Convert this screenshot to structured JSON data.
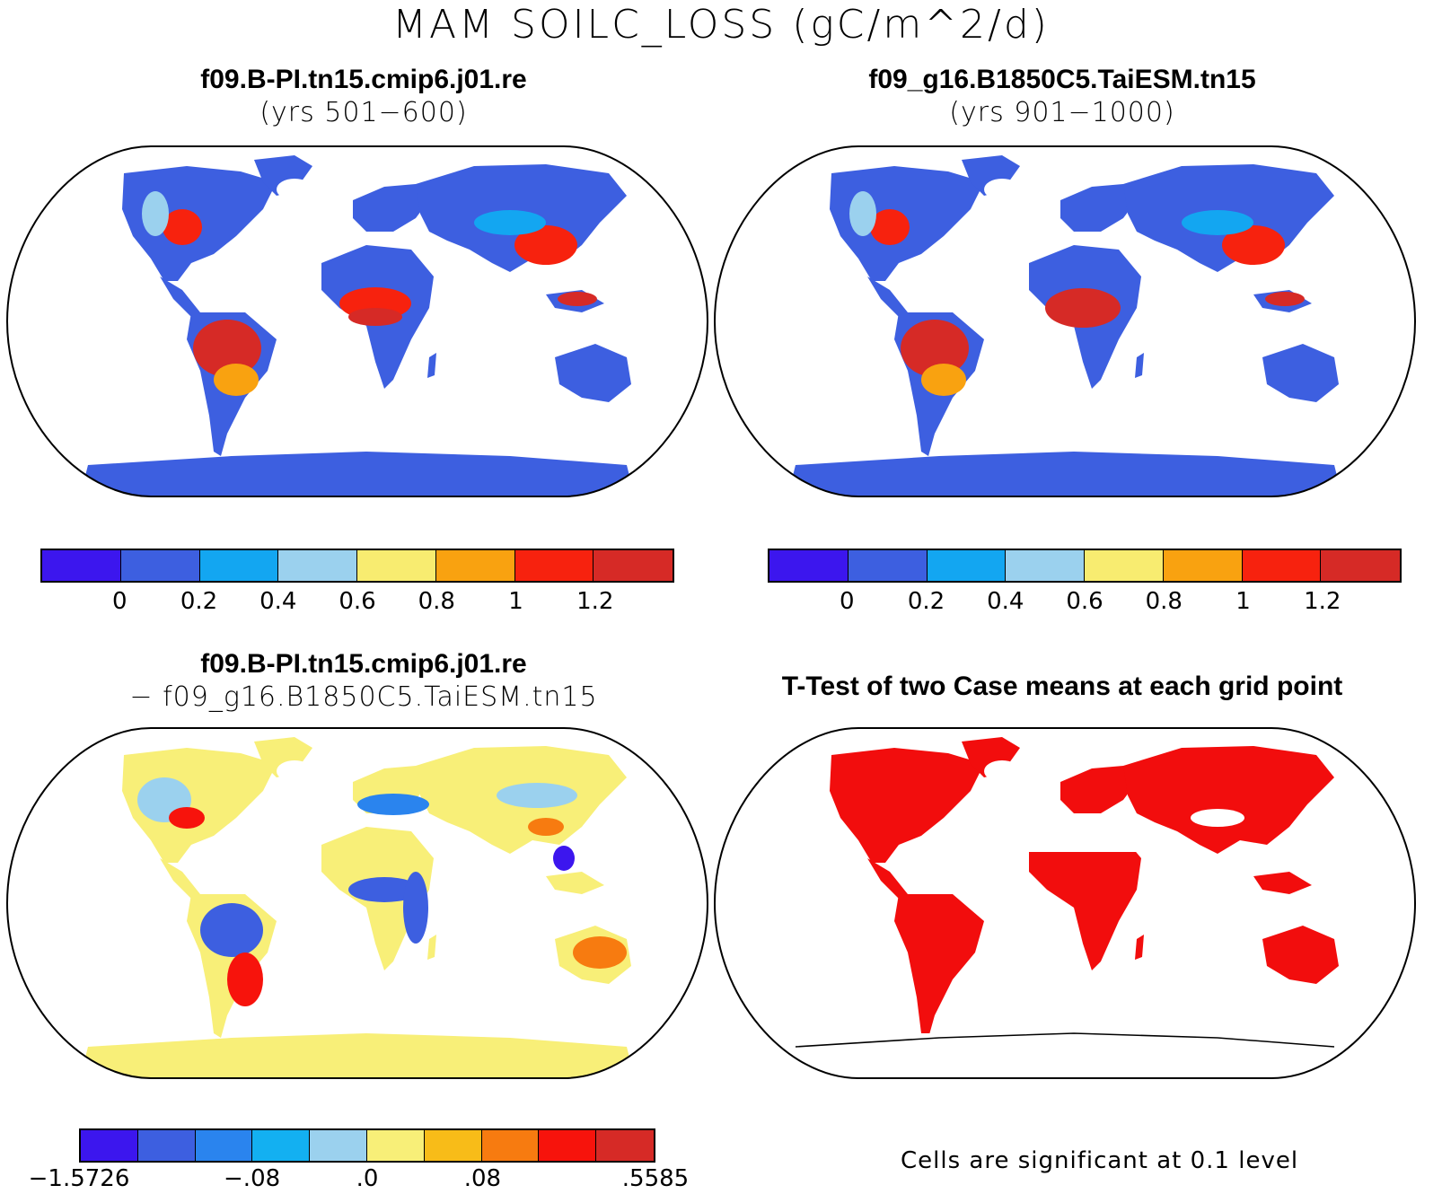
{
  "figure": {
    "title": "MAM SOILC_LOSS (gC/m^2/d)",
    "panels": [
      {
        "title": "f09.B-PI.tn15.cmip6.j01.re",
        "subtitle": "(yrs 501−600)"
      },
      {
        "title": "f09_g16.B1850C5.TaiESM.tn15",
        "subtitle": "(yrs 901−1000)"
      },
      {
        "title": "f09.B-PI.tn15.cmip6.j01.re",
        "subtitle": "− f09_g16.B1850C5.TaiESM.tn15"
      },
      {
        "title": "T-Test of two Case means at each grid point",
        "subtitle": ""
      }
    ],
    "colorbars": {
      "absolute": {
        "colors": [
          "#3c16ee",
          "#3d5fe0",
          "#13a6f1",
          "#9bd1ee",
          "#f8ec70",
          "#f9a210",
          "#f7220e",
          "#d62a26"
        ],
        "tick_labels": [
          "0",
          "0.2",
          "0.4",
          "0.6",
          "0.8",
          "1",
          "1.2"
        ]
      },
      "difference": {
        "colors": [
          "#3c16ee",
          "#3d5fe0",
          "#2a84ee",
          "#13b0f1",
          "#9bd1ee",
          "#f8ef78",
          "#f8bc18",
          "#f77b10",
          "#f7130c",
          "#d62a26"
        ],
        "tick_labels": [
          "−1.5726",
          "−.08",
          ".0",
          ".08",
          ".5585"
        ]
      }
    },
    "significance_note": "Cells are significant at 0.1 level",
    "significance_color": "#f20d0d"
  },
  "chart_data": [
    {
      "type": "heatmap",
      "title": "f09.B-PI.tn15.cmip6.j01.re",
      "subtitle": "(yrs 501−600)",
      "variable": "MAM SOILC_LOSS (gC/m^2/d)",
      "levels": [
        0,
        0.2,
        0.4,
        0.6,
        0.8,
        1,
        1.2
      ]
    },
    {
      "type": "heatmap",
      "title": "f09_g16.B1850C5.TaiESM.tn15",
      "subtitle": "(yrs 901−1000)",
      "variable": "MAM SOILC_LOSS (gC/m^2/d)",
      "levels": [
        0,
        0.2,
        0.4,
        0.6,
        0.8,
        1,
        1.2
      ]
    },
    {
      "type": "heatmap",
      "title": "f09.B-PI.tn15.cmip6.j01.re",
      "subtitle": "− f09_g16.B1850C5.TaiESM.tn15",
      "variable": "MAM SOILC_LOSS (gC/m^2/d)",
      "tick_labels": [
        "−1.5726",
        "−.08",
        ".0",
        ".08",
        ".5585"
      ],
      "range": [
        -1.5726,
        0.5585
      ]
    },
    {
      "type": "heatmap",
      "title": "T-Test of two Case means at each grid point",
      "note": "Cells are significant at 0.1 level"
    }
  ]
}
